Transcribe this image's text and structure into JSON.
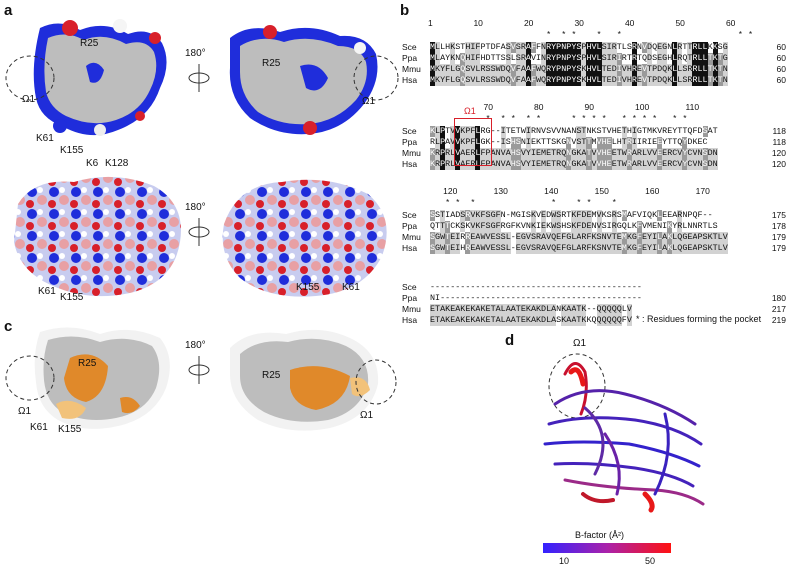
{
  "panels": {
    "a": "a",
    "b": "b",
    "c": "c",
    "d": "d"
  },
  "labels": {
    "a_top": {
      "r25_left": "R25",
      "r25_right": "R25",
      "omega_left": "Ω1",
      "omega_right": "Ω1",
      "k61": "K61",
      "k155": "K155",
      "rot": "180°"
    },
    "a_bottom": {
      "k6": "K6",
      "k128": "K128",
      "k61_left": "K61",
      "k155_left": "K155",
      "k155_right": "K155",
      "k61_right": "K61",
      "rot": "180°"
    },
    "c": {
      "r25_left": "R25",
      "r25_right": "R25",
      "omega_left": "Ω1",
      "omega_right": "Ω1",
      "k61": "K61",
      "k155": "K155",
      "rot": "180°"
    },
    "d": {
      "omega": "Ω1",
      "bfactor_title": "B-factor (Å²)",
      "bf_min": "10",
      "bf_max": "50"
    },
    "pocket_legend": "* : Residues forming the pocket",
    "omega_box": "Ω1"
  },
  "alignment": {
    "blocks": [
      {
        "ticks": [
          "1",
          "10",
          "20",
          "30",
          "40",
          "50",
          "60"
        ],
        "stars": "                       *  * *    *   *                       * * ",
        "rows": [
          {
            "name": "Sce",
            "seq": "MLLHKSTHIFPTDFASVSRAFFNRYPNPYSPHVLSIRTLSRNVDQEGNLRTTRLLKKSG",
            "end": "60"
          },
          {
            "name": "Ppa",
            "seq": "MLAYKNQHIFHDTTSSLSRAVINRYPNPYSPHVLSIRIRTRTQDSEGHLRQTRLLTKTG",
            "end": "60"
          },
          {
            "name": "Mmu",
            "seq": "MKYFLGQSVLRSSWDQVFAAFWQRYPNPYSKHVLTEDIVHREVTPDQKLLSRRLLTKTN",
            "end": "60"
          },
          {
            "name": "Hsa",
            "seq": "MKYFLGQSVLRSSWDQVFAAFWQRYPNPYSKHVLTEDIVHREVTPDQKLLSRRLLTKTN",
            "end": "60"
          }
        ]
      },
      {
        "ticks": [
          "70",
          "80",
          "90",
          "100",
          "110"
        ],
        "stars": "           *  * *  * *      * * * *   * * * *   * *          ",
        "rows": [
          {
            "name": "Sce",
            "seq": "KLPTVVKPFLRG--ITETWIRNVSVVNANSTNKSTVHETHIGTMKVREYTTQFDSAT",
            "end": "118"
          },
          {
            "name": "Ppa",
            "seq": "RLPAVVKPFLGK--ISHSNIEKTTSKGNVSTTMVHELHTRIIRIEEYTTQYDKEC",
            "end": "118"
          },
          {
            "name": "Mmu",
            "seq": "KRPRLVAERLFPANVAHSVYIEMETRQNGKATVVHEETWRARLVVEERCVYCVNSDN",
            "end": "120"
          },
          {
            "name": "Hsa",
            "seq": "KRPRLVAERLFPANVAHSVYIEMETRQNGKATVVHEETWRARLVVEERCVYCVNSDN",
            "end": "120"
          }
        ]
      },
      {
        "ticks": [
          "120",
          "130",
          "140",
          "150",
          "160",
          "170"
        ],
        "stars": "   * *  *               *    * *    *                        ",
        "rows": [
          {
            "name": "Sce",
            "seq": "SSTIADSRVKFSGFN-MGISKVEDWSRTKFDEMVKSRSMAFVIQKLEEARNPQF--",
            "end": "175"
          },
          {
            "name": "Ppa",
            "seq": "QTTTCKSKVKFSGFRGFKVNKIEKWSHSKFDENVSIRGQLKFVMENIKYRLNNRTLS",
            "end": "178"
          },
          {
            "name": "Mmu",
            "seq": "SGWTEIRREAWVESSL-EGVSRAVQEFGLARFKSNVTEMKGFEYILAKLQGEAPSKTLV",
            "end": "179"
          },
          {
            "name": "Hsa",
            "seq": "SGWTEIHREAWVESSL-EGVSRAVQEFGLARFKSNVTEMKGFEYILAKLQGEAPSKTLV",
            "end": "179"
          }
        ]
      },
      {
        "ticks": [],
        "stars": "",
        "rows": [
          {
            "name": "Sce",
            "seq": "------------------------------------------",
            "end": ""
          },
          {
            "name": "Ppa",
            "seq": "NI----------------------------------------",
            "end": "180"
          },
          {
            "name": "Mmu",
            "seq": "ETAKEAKEKAKETALAATEKAKDLANKAATK--QQQQQLV",
            "end": "217"
          },
          {
            "name": "Hsa",
            "seq": "ETAKEAKEKAKETALAATEKAKDLASKAATKKQQQQQQFV",
            "end": "219"
          }
        ]
      }
    ]
  },
  "colors": {
    "positive": "#1f2ddb",
    "negative": "#d8202a",
    "neutral": "#ffffff",
    "cut": "#bdbdbd",
    "hydro": "#e0892a",
    "hydro_light": "#f2c27a",
    "bf_low": "#3322cc",
    "bf_high": "#e81818"
  }
}
